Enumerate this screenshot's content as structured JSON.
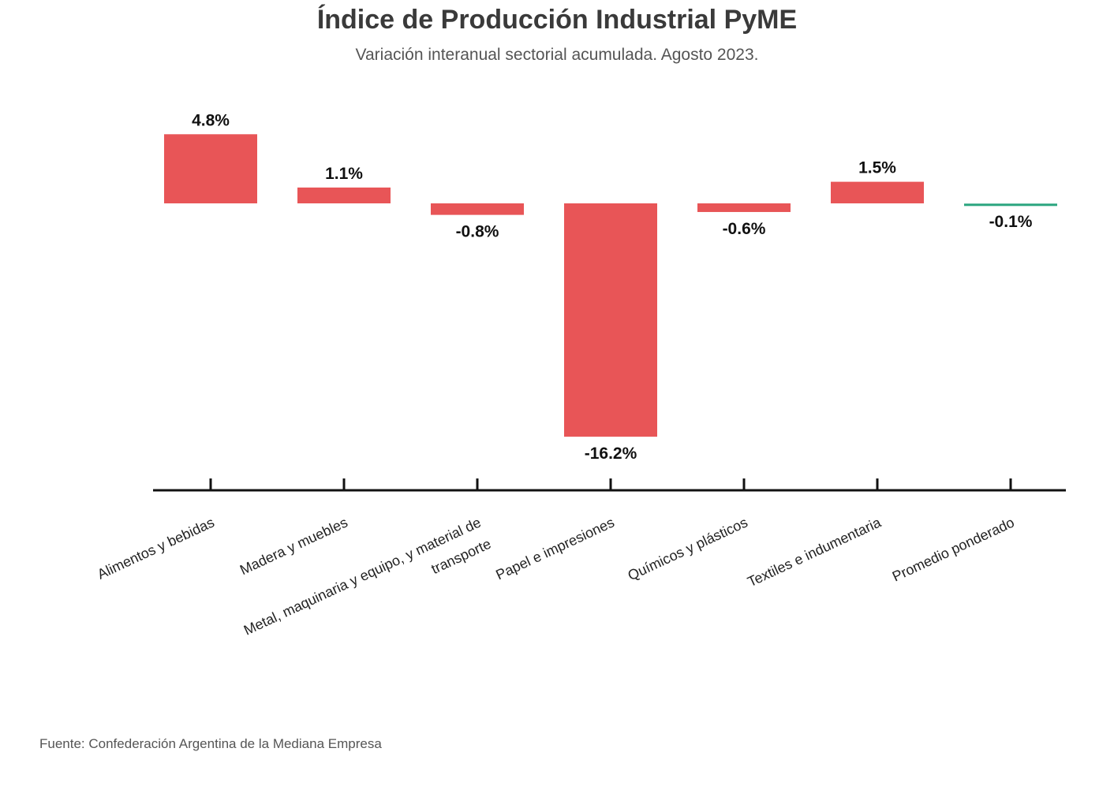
{
  "title": "Índice de Producción Industrial PyME",
  "subtitle": "Variación interanual sectorial acumulada. Agosto 2023.",
  "source": "Fuente: Confederación Argentina de la Mediana Empresa",
  "colors": {
    "bar": "#e85557",
    "average": "#2aa57e",
    "axis": "#111111"
  },
  "chart_data": {
    "type": "bar",
    "title": "Índice de Producción Industrial PyME",
    "subtitle": "Variación interanual sectorial acumulada. Agosto 2023.",
    "xlabel": "",
    "ylabel": "",
    "grid": false,
    "categories": [
      "Alimentos y bebidas",
      "Madera y muebles",
      "Metal, maquinaria y equipo, y material de transporte",
      "Papel e impresiones",
      "Químicos y plásticos",
      "Textiles e indumentaria",
      "Promedio ponderado"
    ],
    "category_lines": [
      [
        "Alimentos y bebidas"
      ],
      [
        "Madera y muebles"
      ],
      [
        "Metal, maquinaria y equipo, y material de",
        "transporte"
      ],
      [
        "Papel e impresiones"
      ],
      [
        "Químicos y plásticos"
      ],
      [
        "Textiles e indumentaria"
      ],
      [
        "Promedio ponderado"
      ]
    ],
    "values": [
      4.8,
      1.1,
      -0.8,
      -16.2,
      -0.6,
      1.5,
      -0.1
    ],
    "labels": [
      "4.8%",
      "1.1%",
      "-0.8%",
      "-16.2%",
      "-0.6%",
      "1.5%",
      "-0.1%"
    ],
    "highlight_index": 6,
    "ylim": [
      -19.9,
      4.8
    ]
  }
}
